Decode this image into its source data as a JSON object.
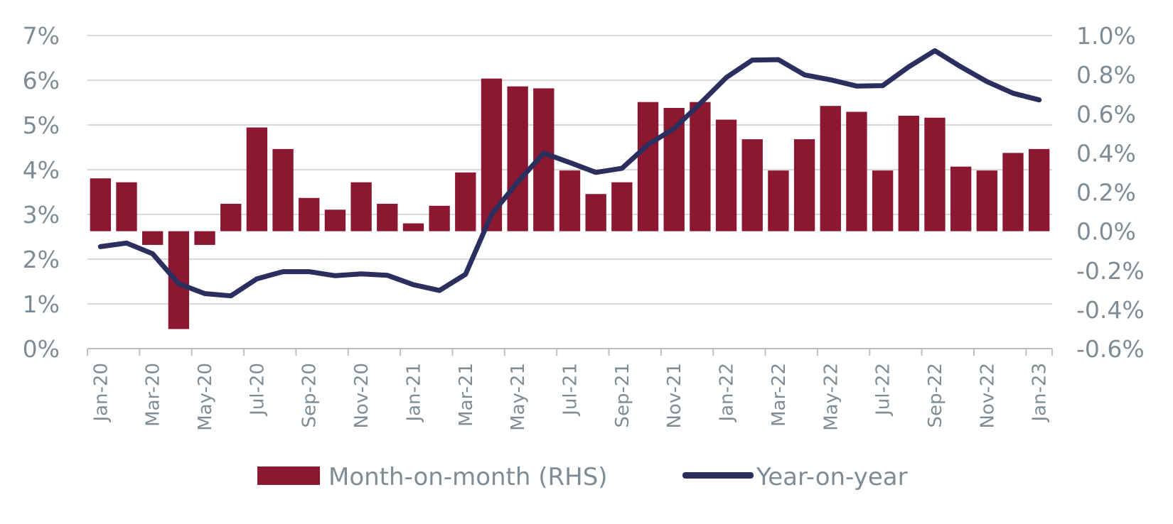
{
  "chart_data": {
    "type": "bar+line",
    "categories": [
      "Jan-20",
      "Feb-20",
      "Mar-20",
      "Apr-20",
      "May-20",
      "Jun-20",
      "Jul-20",
      "Aug-20",
      "Sep-20",
      "Oct-20",
      "Nov-20",
      "Dec-20",
      "Jan-21",
      "Feb-21",
      "Mar-21",
      "Apr-21",
      "May-21",
      "Jun-21",
      "Jul-21",
      "Aug-21",
      "Sep-21",
      "Oct-21",
      "Nov-21",
      "Dec-21",
      "Jan-22",
      "Feb-22",
      "Mar-22",
      "Apr-22",
      "May-22",
      "Jun-22",
      "Jul-22",
      "Aug-22",
      "Sep-22",
      "Oct-22",
      "Nov-22",
      "Dec-22",
      "Jan-23"
    ],
    "x_tick_labels": [
      "Jan-20",
      "Mar-20",
      "May-20",
      "Jul-20",
      "Sep-20",
      "Nov-20",
      "Jan-21",
      "Mar-21",
      "May-21",
      "Jul-21",
      "Sep-21",
      "Nov-21",
      "Jan-22",
      "Mar-22",
      "May-22",
      "Jul-22",
      "Sep-22",
      "Nov-22",
      "Jan-23"
    ],
    "series": [
      {
        "name": "Month-on-month (RHS)",
        "type": "bar",
        "axis": "right",
        "color": "#8c1730",
        "values": [
          0.27,
          0.25,
          -0.07,
          -0.5,
          -0.07,
          0.14,
          0.53,
          0.42,
          0.17,
          0.11,
          0.25,
          0.14,
          0.04,
          0.13,
          0.3,
          0.78,
          0.74,
          0.73,
          0.31,
          0.19,
          0.25,
          0.66,
          0.63,
          0.66,
          0.57,
          0.47,
          0.31,
          0.47,
          0.64,
          0.61,
          0.31,
          0.59,
          0.58,
          0.33,
          0.31,
          0.4,
          0.42
        ]
      },
      {
        "name": "Year-on-year",
        "type": "line",
        "axis": "left",
        "color": "#2c2f5e",
        "values": [
          2.28,
          2.36,
          2.12,
          1.45,
          1.23,
          1.18,
          1.56,
          1.72,
          1.72,
          1.63,
          1.67,
          1.64,
          1.43,
          1.3,
          1.66,
          3.0,
          3.72,
          4.37,
          4.16,
          3.94,
          4.03,
          4.56,
          4.92,
          5.48,
          6.06,
          6.45,
          6.46,
          6.12,
          6.01,
          5.87,
          5.88,
          6.3,
          6.66,
          6.3,
          5.97,
          5.71,
          5.56
        ]
      }
    ],
    "y_left": {
      "min": 0,
      "max": 7,
      "ticks": [
        "0%",
        "1%",
        "2%",
        "3%",
        "4%",
        "5%",
        "6%",
        "7%"
      ]
    },
    "y_right": {
      "min": -0.6,
      "max": 1.0,
      "ticks": [
        "-0.6%",
        "-0.4%",
        "-0.2%",
        "0.0%",
        "0.2%",
        "0.4%",
        "0.6%",
        "0.8%",
        "1.0%"
      ]
    },
    "grid": true,
    "legend_position": "bottom",
    "colors": {
      "grid": "#d9d9d9",
      "axis": "#bfbfbf",
      "text": "#7f8c96"
    }
  }
}
